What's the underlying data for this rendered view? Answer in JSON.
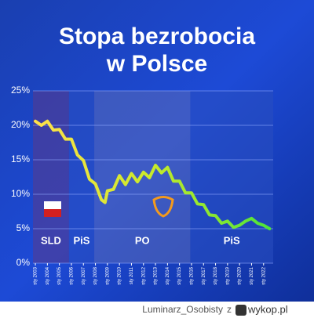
{
  "chart_data": {
    "type": "line",
    "title": "Stopa bezrobocia",
    "subtitle": "w Polsce",
    "xlim": [
      2002.8,
      2022.8
    ],
    "ylim": [
      0,
      25
    ],
    "yticks": [
      {
        "value": 0,
        "label": "0%"
      },
      {
        "value": 5,
        "label": "5%"
      },
      {
        "value": 10,
        "label": "10%"
      },
      {
        "value": 15,
        "label": "15%"
      },
      {
        "value": 20,
        "label": "20%"
      },
      {
        "value": 25,
        "label": "25%"
      }
    ],
    "xticks": [
      {
        "value": 2003,
        "label": "sty 2003"
      },
      {
        "value": 2004,
        "label": "sty 2004"
      },
      {
        "value": 2005,
        "label": "sty 2005"
      },
      {
        "value": 2006,
        "label": "sty 2006"
      },
      {
        "value": 2007,
        "label": "sty 2007"
      },
      {
        "value": 2008,
        "label": "sty 2008"
      },
      {
        "value": 2009,
        "label": "sty 2009"
      },
      {
        "value": 2010,
        "label": "sty 2010"
      },
      {
        "value": 2011,
        "label": "sty 2011"
      },
      {
        "value": 2012,
        "label": "sty 2012"
      },
      {
        "value": 2013,
        "label": "sty 2013"
      },
      {
        "value": 2014,
        "label": "sty 2014"
      },
      {
        "value": 2015,
        "label": "sty 2015"
      },
      {
        "value": 2016,
        "label": "sty 2016"
      },
      {
        "value": 2017,
        "label": "sty 2017"
      },
      {
        "value": 2018,
        "label": "sty 2018"
      },
      {
        "value": 2019,
        "label": "sty 2019"
      },
      {
        "value": 2020,
        "label": "sty 2020"
      },
      {
        "value": 2021,
        "label": "sty 2021"
      },
      {
        "value": 2022,
        "label": "sty 2022"
      }
    ],
    "grid": true,
    "periods": [
      {
        "label": "SLD",
        "start": 2002.8,
        "end": 2005.8,
        "color": "#5a3a8a"
      },
      {
        "label": "PiS",
        "start": 2005.8,
        "end": 2007.9,
        "color": "#2a4fc0"
      },
      {
        "label": "PO",
        "start": 2007.9,
        "end": 2015.9,
        "color": "#5a6ab8"
      },
      {
        "label": "PiS",
        "start": 2015.9,
        "end": 2022.8,
        "color": "#2a4fc0"
      }
    ],
    "series": [
      {
        "name": "Stopa bezrobocia",
        "color": "#b8e63a",
        "x": [
          2003,
          2003.5,
          2004,
          2004.5,
          2005,
          2005.5,
          2006,
          2006.5,
          2007,
          2007.5,
          2008,
          2008.5,
          2008.8,
          2009,
          2009.5,
          2010,
          2010.5,
          2011,
          2011.5,
          2012,
          2012.5,
          2013,
          2013.5,
          2014,
          2014.5,
          2015,
          2015.5,
          2016,
          2016.5,
          2017,
          2017.5,
          2018,
          2018.5,
          2019,
          2019.5,
          2020,
          2020.5,
          2021,
          2021.5,
          2022,
          2022.5
        ],
        "values": [
          20.6,
          20.0,
          20.6,
          19.3,
          19.4,
          18.0,
          18.0,
          15.7,
          14.9,
          12.2,
          11.5,
          9.2,
          8.8,
          10.5,
          10.7,
          12.7,
          11.4,
          13.0,
          11.8,
          13.2,
          12.4,
          14.2,
          13.1,
          13.9,
          11.9,
          11.9,
          10.2,
          10.2,
          8.6,
          8.5,
          7.0,
          6.9,
          5.8,
          6.1,
          5.2,
          5.5,
          6.1,
          6.5,
          5.8,
          5.5,
          5.0
        ]
      }
    ]
  },
  "footer": {
    "user": "Luminarz_Osobisty",
    "sep": "z",
    "site": "wykop.pl"
  }
}
